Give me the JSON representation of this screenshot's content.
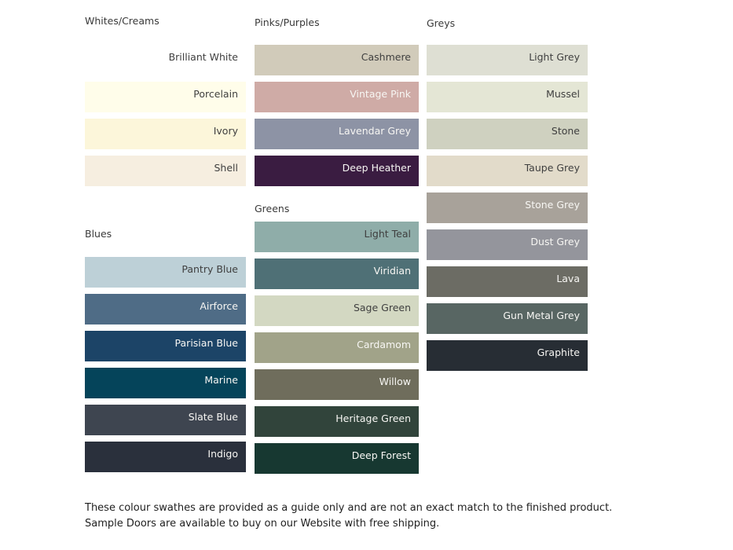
{
  "page": {
    "background": "#ffffff"
  },
  "palette": {
    "label_colors": {
      "dark": "#3f3f3f",
      "light": "#f7f6f3"
    },
    "columns": [
      {
        "groups": [
          {
            "title": "Whites/Creams",
            "swatches": [
              {
                "name": "Brilliant White",
                "color": "#ffffff",
                "label_style": "dark"
              },
              {
                "name": "Porcelain",
                "color": "#fffdea",
                "label_style": "dark"
              },
              {
                "name": "Ivory",
                "color": "#fcf6da",
                "label_style": "dark"
              },
              {
                "name": "Shell",
                "color": "#f6eee0",
                "label_style": "dark"
              }
            ]
          },
          {
            "title": "Blues",
            "swatches": [
              {
                "name": "Pantry Blue",
                "color": "#bdd0d7",
                "label_style": "dark"
              },
              {
                "name": "Airforce",
                "color": "#4f6c86",
                "label_style": "light"
              },
              {
                "name": "Parisian Blue",
                "color": "#1c4467",
                "label_style": "light"
              },
              {
                "name": "Marine",
                "color": "#05445a",
                "label_style": "light"
              },
              {
                "name": "Slate Blue",
                "color": "#3e4550",
                "label_style": "light"
              },
              {
                "name": "Indigo",
                "color": "#2a303c",
                "label_style": "light"
              }
            ]
          }
        ]
      },
      {
        "groups": [
          {
            "title": "Pinks/Purples",
            "swatches": [
              {
                "name": "Cashmere",
                "color": "#d1cbba",
                "label_style": "dark"
              },
              {
                "name": "Vintage Pink",
                "color": "#cfaba6",
                "label_style": "light"
              },
              {
                "name": "Lavendar Grey",
                "color": "#8d93a5",
                "label_style": "light"
              },
              {
                "name": "Deep Heather",
                "color": "#3a1c41",
                "label_style": "light"
              }
            ]
          },
          {
            "title": "Greens",
            "swatches": [
              {
                "name": "Light Teal",
                "color": "#8fada9",
                "label_style": "dark"
              },
              {
                "name": "Viridian",
                "color": "#4f7076",
                "label_style": "light"
              },
              {
                "name": "Sage Green",
                "color": "#d3d8c2",
                "label_style": "dark"
              },
              {
                "name": "Cardamom",
                "color": "#a1a389",
                "label_style": "light"
              },
              {
                "name": "Willow",
                "color": "#6f6d5c",
                "label_style": "light"
              },
              {
                "name": "Heritage Green",
                "color": "#31443b",
                "label_style": "light"
              },
              {
                "name": "Deep Forest",
                "color": "#173831",
                "label_style": "light"
              }
            ]
          }
        ]
      },
      {
        "groups": [
          {
            "title": "Greys",
            "swatches": [
              {
                "name": "Light Grey",
                "color": "#dedfd3",
                "label_style": "dark"
              },
              {
                "name": "Mussel",
                "color": "#e4e6d5",
                "label_style": "dark"
              },
              {
                "name": "Stone",
                "color": "#cfd1c0",
                "label_style": "dark"
              },
              {
                "name": "Taupe Grey",
                "color": "#e2dbca",
                "label_style": "dark"
              },
              {
                "name": "Stone Grey",
                "color": "#a8a29a",
                "label_style": "light"
              },
              {
                "name": "Dust Grey",
                "color": "#94959c",
                "label_style": "light"
              },
              {
                "name": "Lava",
                "color": "#6c6c64",
                "label_style": "light"
              },
              {
                "name": "Gun Metal Grey",
                "color": "#586663",
                "label_style": "light"
              },
              {
                "name": "Graphite",
                "color": "#272d34",
                "label_style": "light"
              }
            ]
          }
        ]
      }
    ]
  },
  "footer": {
    "note": "These colour swathes are provided as a guide only and are not an exact match to the finished product.  Sample Doors are available to buy on our Website with free shipping."
  }
}
